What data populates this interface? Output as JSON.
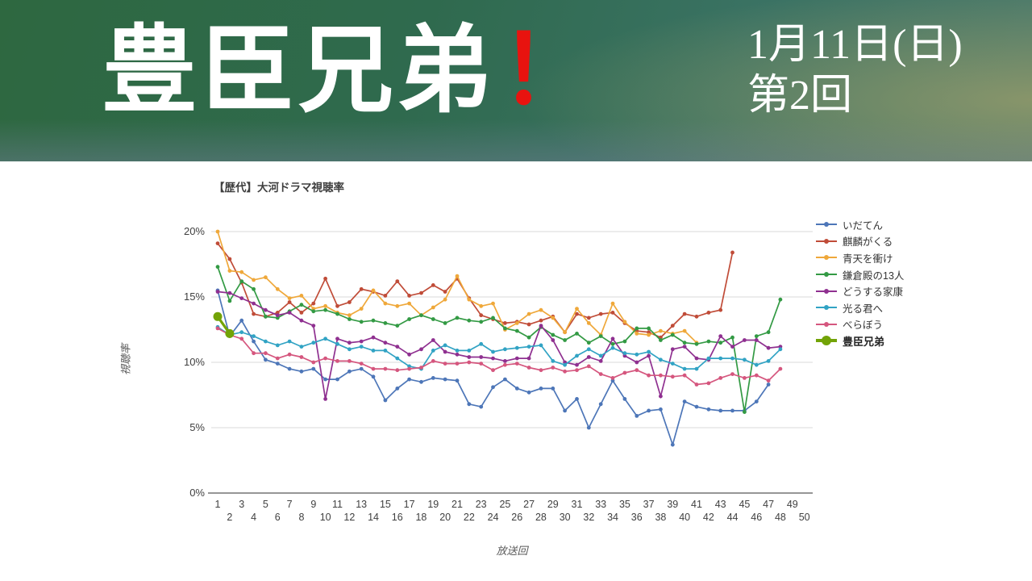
{
  "header": {
    "title": "豊臣兄弟",
    "exclamation": "！",
    "date_line1": "1月11日(日)",
    "date_line2": "第2回",
    "title_color": "#ffffff",
    "exclamation_color": "#e8130f",
    "background_gradient": [
      "#2e6840",
      "#3a7263",
      "#b2a86a",
      "#687c8c"
    ]
  },
  "chart_data": {
    "type": "line",
    "title": "【歴代】大河ドラマ視聴率",
    "xlabel": "放送回",
    "ylabel": "視聴率",
    "x_range": [
      1,
      50
    ],
    "ylim": [
      0,
      20
    ],
    "y_ticks": [
      "0%",
      "5%",
      "10%",
      "15%",
      "20%"
    ],
    "grid": true,
    "legend_position": "right",
    "series": [
      {
        "name": "いだてん",
        "color": "#4d76b8",
        "emphasize": false,
        "values": [
          15.5,
          12.0,
          13.2,
          11.6,
          10.2,
          9.9,
          9.5,
          9.3,
          9.5,
          8.7,
          8.7,
          9.3,
          9.5,
          8.9,
          7.1,
          8.0,
          8.7,
          8.5,
          8.8,
          8.7,
          8.6,
          6.8,
          6.6,
          8.1,
          8.7,
          8.0,
          7.7,
          8.0,
          8.0,
          6.3,
          7.2,
          5.0,
          6.8,
          8.6,
          7.2,
          5.9,
          6.3,
          6.4,
          3.7,
          7.0,
          6.6,
          6.4,
          6.3,
          6.3,
          6.3,
          7.0,
          8.3
        ]
      },
      {
        "name": "麒麟がくる",
        "color": "#c04c38",
        "emphasize": false,
        "values": [
          19.1,
          17.9,
          16.1,
          13.7,
          13.5,
          13.8,
          14.6,
          13.8,
          14.5,
          16.4,
          14.3,
          14.6,
          15.6,
          15.4,
          15.1,
          16.2,
          15.1,
          15.3,
          15.9,
          15.4,
          16.4,
          14.9,
          13.6,
          13.3,
          13.0,
          13.1,
          12.9,
          13.2,
          13.5,
          12.3,
          13.7,
          13.4,
          13.7,
          13.8,
          13.0,
          12.4,
          12.3,
          11.9,
          12.8,
          13.7,
          13.5,
          13.8,
          14.0,
          18.4
        ]
      },
      {
        "name": "青天を衝け",
        "color": "#efa83a",
        "emphasize": false,
        "values": [
          20.0,
          17.0,
          16.9,
          16.3,
          16.5,
          15.6,
          14.9,
          15.1,
          14.1,
          14.3,
          13.8,
          13.6,
          14.1,
          15.5,
          14.5,
          14.3,
          14.5,
          13.6,
          14.2,
          14.8,
          16.6,
          14.8,
          14.3,
          14.5,
          12.5,
          13.0,
          13.7,
          14.0,
          13.4,
          12.3,
          14.1,
          13.0,
          12.1,
          14.5,
          13.1,
          12.2,
          12.1,
          12.4,
          12.2,
          12.4,
          11.5
        ]
      },
      {
        "name": "鎌倉殿の13人",
        "color": "#339a44",
        "emphasize": false,
        "values": [
          17.3,
          14.7,
          16.2,
          15.6,
          13.5,
          13.4,
          13.9,
          14.4,
          13.9,
          14.0,
          13.7,
          13.3,
          13.1,
          13.2,
          13.0,
          12.8,
          13.3,
          13.6,
          13.3,
          13.0,
          13.4,
          13.2,
          13.1,
          13.4,
          12.6,
          12.4,
          11.9,
          12.7,
          12.1,
          11.7,
          12.2,
          11.5,
          12.0,
          11.4,
          11.6,
          12.6,
          12.6,
          11.7,
          12.1,
          11.5,
          11.4,
          11.6,
          11.5,
          11.9,
          6.2,
          12.0,
          12.3,
          14.8
        ]
      },
      {
        "name": "どうする家康",
        "color": "#8f3090",
        "emphasize": false,
        "values": [
          15.4,
          15.3,
          14.9,
          14.5,
          14.0,
          13.6,
          13.8,
          13.2,
          12.8,
          7.2,
          11.8,
          11.5,
          11.6,
          11.9,
          11.5,
          11.2,
          10.6,
          11.0,
          11.7,
          10.8,
          10.6,
          10.4,
          10.4,
          10.3,
          10.1,
          10.3,
          10.3,
          12.8,
          11.7,
          10.0,
          9.8,
          10.4,
          10.1,
          11.8,
          10.5,
          10.0,
          10.5,
          7.4,
          11.0,
          11.2,
          10.3,
          10.2,
          12.0,
          11.2,
          11.7,
          11.7,
          11.1,
          11.2
        ]
      },
      {
        "name": "光る君へ",
        "color": "#31a3c4",
        "emphasize": false,
        "values": [
          12.7,
          12.1,
          12.3,
          12.0,
          11.6,
          11.3,
          11.6,
          11.2,
          11.5,
          11.8,
          11.4,
          11.0,
          11.2,
          10.9,
          10.9,
          10.3,
          9.7,
          9.5,
          10.9,
          11.3,
          10.9,
          10.9,
          11.4,
          10.8,
          11.0,
          11.1,
          11.2,
          11.3,
          10.1,
          9.8,
          10.5,
          11.0,
          10.5,
          11.1,
          10.7,
          10.6,
          10.8,
          10.2,
          9.9,
          9.5,
          9.5,
          10.3,
          10.3,
          10.3,
          10.2,
          9.8,
          10.1,
          11.0
        ]
      },
      {
        "name": "べらぼう",
        "color": "#d5567e",
        "emphasize": false,
        "values": [
          12.6,
          12.1,
          11.8,
          10.7,
          10.7,
          10.3,
          10.6,
          10.4,
          10.0,
          10.3,
          10.1,
          10.1,
          9.9,
          9.5,
          9.5,
          9.4,
          9.5,
          9.6,
          10.1,
          9.9,
          9.9,
          10.0,
          9.9,
          9.4,
          9.8,
          9.9,
          9.6,
          9.4,
          9.6,
          9.3,
          9.4,
          9.7,
          9.1,
          8.8,
          9.2,
          9.4,
          9.0,
          9.0,
          8.9,
          9.0,
          8.3,
          8.4,
          8.8,
          9.1,
          8.8,
          9.0,
          8.6,
          9.5
        ]
      },
      {
        "name": "豊臣兄弟",
        "color": "#72a307",
        "emphasize": true,
        "values": [
          13.5,
          12.2
        ]
      }
    ]
  }
}
